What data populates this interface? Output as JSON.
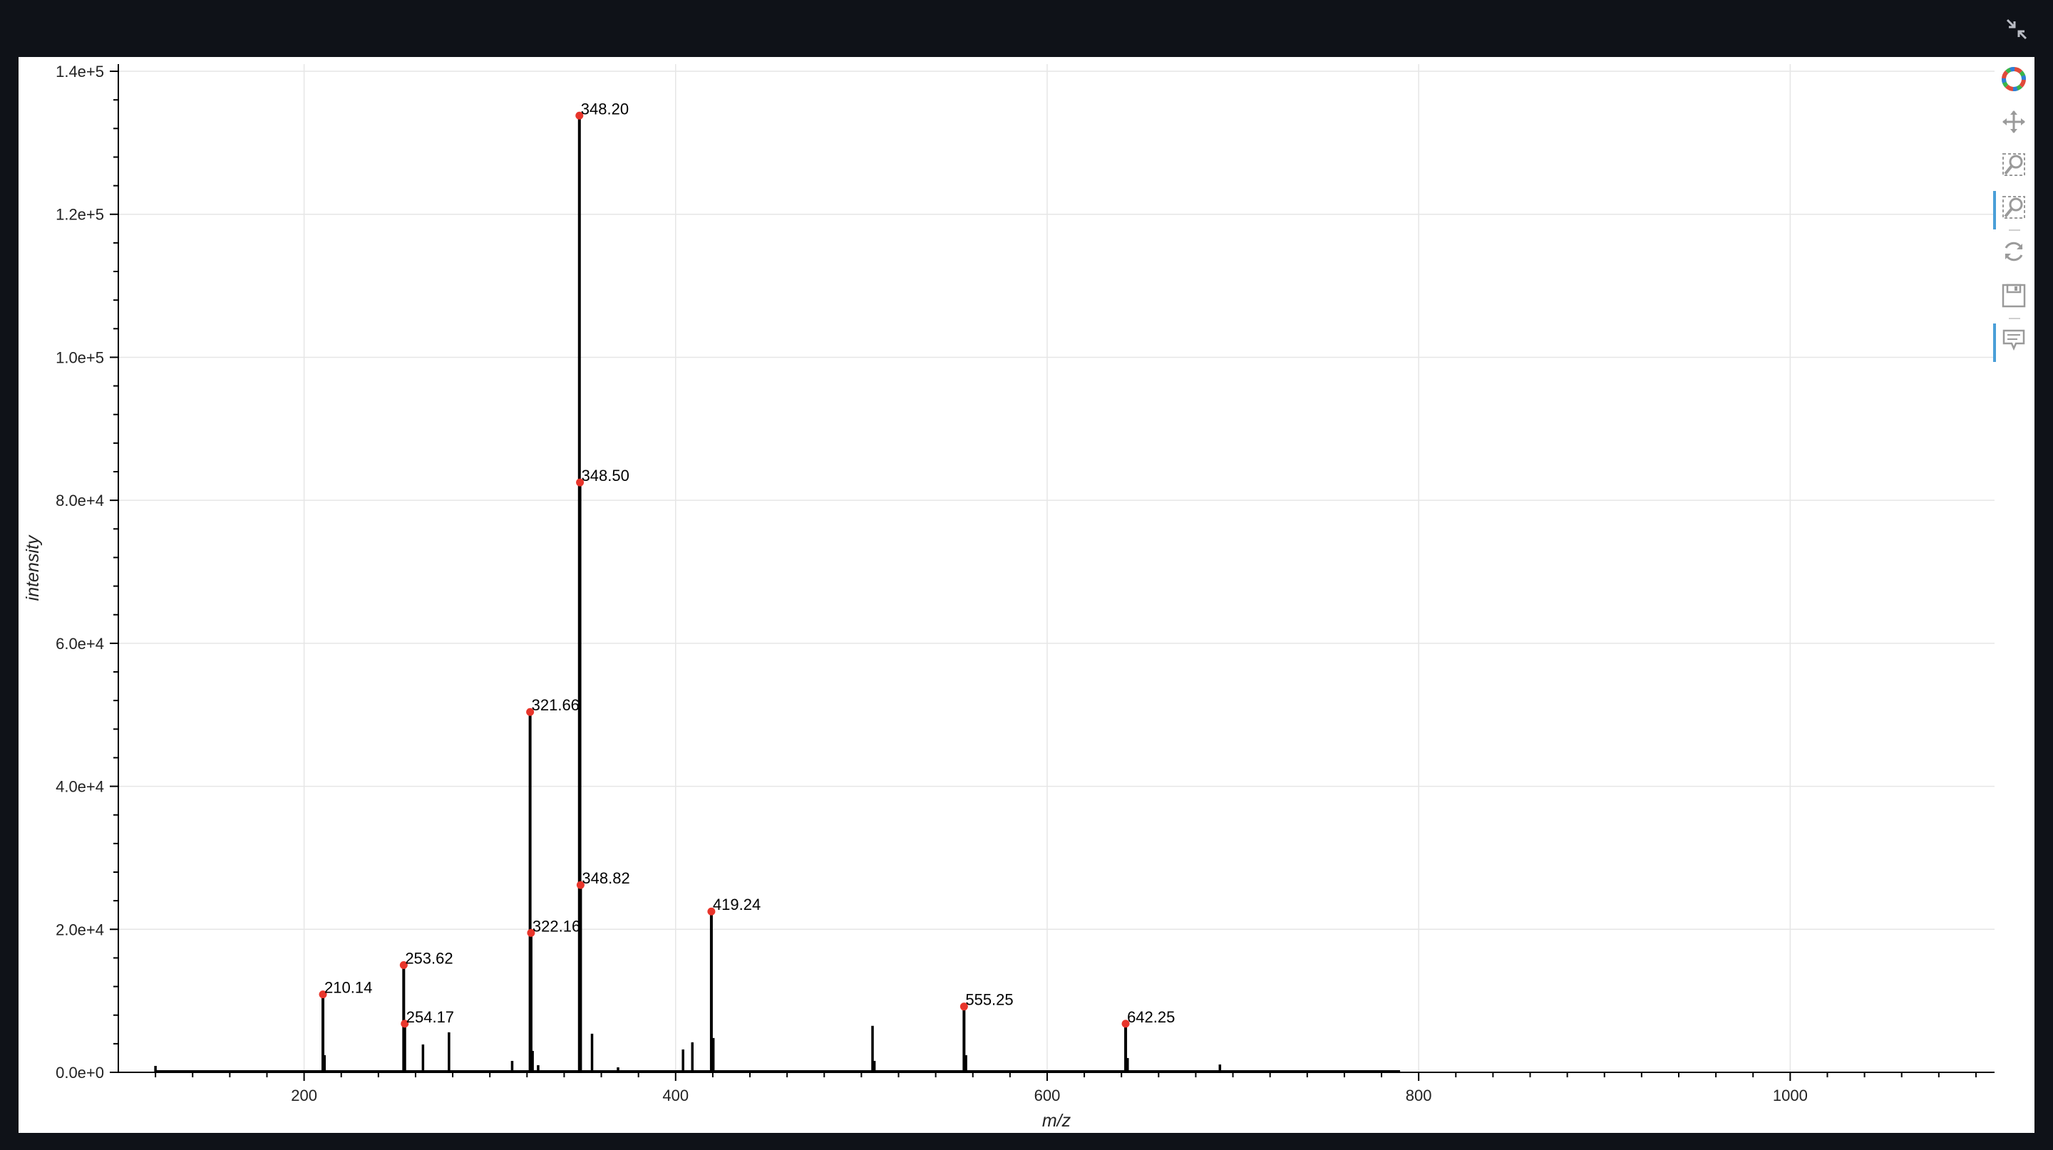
{
  "window": {
    "collapse_icon": "collapse-arrows-icon"
  },
  "toolbar": {
    "tools": [
      {
        "name": "bokeh-logo-icon",
        "active": false
      },
      {
        "name": "pan-icon",
        "active": false
      },
      {
        "name": "box-zoom-icon",
        "active": false
      },
      {
        "name": "wheel-zoom-icon",
        "active": true
      },
      {
        "name": "reset-icon",
        "active": false
      },
      {
        "name": "save-icon",
        "active": false
      },
      {
        "name": "hover-icon",
        "active": true
      }
    ]
  },
  "colors": {
    "background": "#0f1218",
    "panel": "#ffffff",
    "grid": "#e6e6e6",
    "peak_line": "#000000",
    "peak_marker": "#e8352b",
    "active_tool": "#4a9fd8"
  },
  "chart_data": {
    "type": "line",
    "title": "",
    "xlabel": "m/z",
    "ylabel": "intensity",
    "xlim": [
      100,
      1110
    ],
    "ylim": [
      0,
      141000
    ],
    "grid": true,
    "xticks": [
      200,
      400,
      600,
      800,
      1000
    ],
    "xtick_labels": [
      "200",
      "400",
      "600",
      "800",
      "1000"
    ],
    "yticks": [
      0,
      20000,
      40000,
      60000,
      80000,
      100000,
      120000,
      140000
    ],
    "ytick_labels": [
      "0.0e+0",
      "2.0e+4",
      "4.0e+4",
      "6.0e+4",
      "8.0e+4",
      "1.0e+5",
      "1.2e+5",
      "1.4e+5"
    ],
    "baseline": {
      "x_start": 120,
      "x_end": 790
    },
    "annotated_peaks": [
      {
        "mz": 210.14,
        "intensity": 10900,
        "label": "210.14"
      },
      {
        "mz": 253.62,
        "intensity": 15000,
        "label": "253.62"
      },
      {
        "mz": 254.17,
        "intensity": 6800,
        "label": "254.17"
      },
      {
        "mz": 321.66,
        "intensity": 50400,
        "label": "321.66"
      },
      {
        "mz": 322.16,
        "intensity": 19500,
        "label": "322.16"
      },
      {
        "mz": 348.2,
        "intensity": 133800,
        "label": "348.20"
      },
      {
        "mz": 348.5,
        "intensity": 82500,
        "label": "348.50"
      },
      {
        "mz": 348.82,
        "intensity": 26200,
        "label": "348.82"
      },
      {
        "mz": 419.24,
        "intensity": 22500,
        "label": "419.24"
      },
      {
        "mz": 555.25,
        "intensity": 9200,
        "label": "555.25"
      },
      {
        "mz": 642.25,
        "intensity": 6800,
        "label": "642.25"
      }
    ],
    "other_peaks": [
      {
        "mz": 120,
        "intensity": 900
      },
      {
        "mz": 211,
        "intensity": 2400
      },
      {
        "mz": 264,
        "intensity": 3900
      },
      {
        "mz": 278,
        "intensity": 5600
      },
      {
        "mz": 312,
        "intensity": 1600
      },
      {
        "mz": 323,
        "intensity": 3000
      },
      {
        "mz": 326,
        "intensity": 1000
      },
      {
        "mz": 355,
        "intensity": 5400
      },
      {
        "mz": 369,
        "intensity": 700
      },
      {
        "mz": 404,
        "intensity": 3200
      },
      {
        "mz": 409,
        "intensity": 4200
      },
      {
        "mz": 420.3,
        "intensity": 4800
      },
      {
        "mz": 506,
        "intensity": 6500
      },
      {
        "mz": 507,
        "intensity": 1600
      },
      {
        "mz": 556.3,
        "intensity": 2400
      },
      {
        "mz": 643.3,
        "intensity": 2000
      },
      {
        "mz": 693,
        "intensity": 1100
      }
    ]
  }
}
